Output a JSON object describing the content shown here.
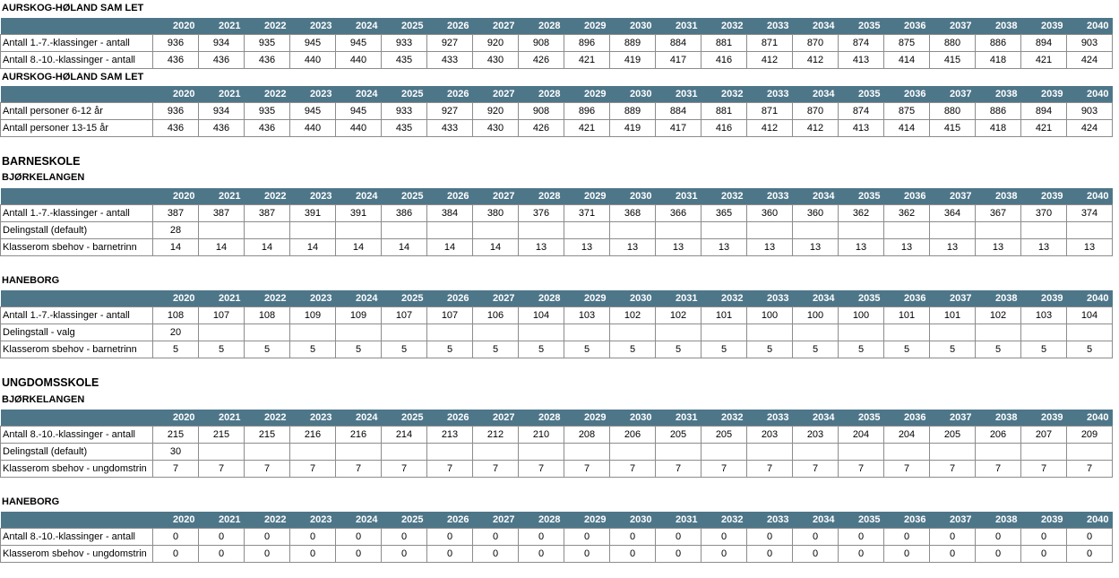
{
  "years": [
    "2020",
    "2021",
    "2022",
    "2023",
    "2024",
    "2025",
    "2026",
    "2027",
    "2028",
    "2029",
    "2030",
    "2031",
    "2032",
    "2033",
    "2034",
    "2035",
    "2036",
    "2037",
    "2038",
    "2039",
    "2040"
  ],
  "sections": [
    {
      "main": "",
      "sub": "AURSKOG-HØLAND SAM LET",
      "rows": [
        {
          "label": "Antall 1.-7.-klassinger - antall",
          "values": [
            "936",
            "934",
            "935",
            "945",
            "945",
            "933",
            "927",
            "920",
            "908",
            "896",
            "889",
            "884",
            "881",
            "871",
            "870",
            "874",
            "875",
            "880",
            "886",
            "894",
            "903"
          ]
        },
        {
          "label": "Antall 8.-10.-klassinger - antall",
          "values": [
            "436",
            "436",
            "436",
            "440",
            "440",
            "435",
            "433",
            "430",
            "426",
            "421",
            "419",
            "417",
            "416",
            "412",
            "412",
            "413",
            "414",
            "415",
            "418",
            "421",
            "424"
          ]
        }
      ]
    },
    {
      "main": "",
      "sub": "AURSKOG-HØLAND SAM LET",
      "rows": [
        {
          "label": "Antall personer 6-12 år",
          "values": [
            "936",
            "934",
            "935",
            "945",
            "945",
            "933",
            "927",
            "920",
            "908",
            "896",
            "889",
            "884",
            "881",
            "871",
            "870",
            "874",
            "875",
            "880",
            "886",
            "894",
            "903"
          ]
        },
        {
          "label": "Antall personer 13-15 år",
          "values": [
            "436",
            "436",
            "436",
            "440",
            "440",
            "435",
            "433",
            "430",
            "426",
            "421",
            "419",
            "417",
            "416",
            "412",
            "412",
            "413",
            "414",
            "415",
            "418",
            "421",
            "424"
          ]
        }
      ]
    },
    {
      "main": "BARNESKOLE",
      "sub": "BJØRKELANGEN",
      "rows": [
        {
          "label": "Antall 1.-7.-klassinger - antall",
          "values": [
            "387",
            "387",
            "387",
            "391",
            "391",
            "386",
            "384",
            "380",
            "376",
            "371",
            "368",
            "366",
            "365",
            "360",
            "360",
            "362",
            "362",
            "364",
            "367",
            "370",
            "374"
          ]
        },
        {
          "label": "Delingstall (default)",
          "values": [
            "28",
            "",
            "",
            "",
            "",
            "",
            "",
            "",
            "",
            "",
            "",
            "",
            "",
            "",
            "",
            "",
            "",
            "",
            "",
            "",
            ""
          ]
        },
        {
          "label": "Klasserom sbehov - barnetrinn",
          "values": [
            "14",
            "14",
            "14",
            "14",
            "14",
            "14",
            "14",
            "14",
            "13",
            "13",
            "13",
            "13",
            "13",
            "13",
            "13",
            "13",
            "13",
            "13",
            "13",
            "13",
            "13"
          ]
        }
      ]
    },
    {
      "main": "",
      "sub": "HANEBORG",
      "rows": [
        {
          "label": "Antall 1.-7.-klassinger - antall",
          "values": [
            "108",
            "107",
            "108",
            "109",
            "109",
            "107",
            "107",
            "106",
            "104",
            "103",
            "102",
            "102",
            "101",
            "100",
            "100",
            "100",
            "101",
            "101",
            "102",
            "103",
            "104"
          ]
        },
        {
          "label": "Delingstall - valg",
          "values": [
            "20",
            "",
            "",
            "",
            "",
            "",
            "",
            "",
            "",
            "",
            "",
            "",
            "",
            "",
            "",
            "",
            "",
            "",
            "",
            "",
            ""
          ]
        },
        {
          "label": "Klasserom sbehov - barnetrinn",
          "values": [
            "5",
            "5",
            "5",
            "5",
            "5",
            "5",
            "5",
            "5",
            "5",
            "5",
            "5",
            "5",
            "5",
            "5",
            "5",
            "5",
            "5",
            "5",
            "5",
            "5",
            "5"
          ]
        }
      ]
    },
    {
      "main": "UNGDOMSSKOLE",
      "sub": "BJØRKELANGEN",
      "rows": [
        {
          "label": "Antall 8.-10.-klassinger - antall",
          "values": [
            "215",
            "215",
            "215",
            "216",
            "216",
            "214",
            "213",
            "212",
            "210",
            "208",
            "206",
            "205",
            "205",
            "203",
            "203",
            "204",
            "204",
            "205",
            "206",
            "207",
            "209"
          ]
        },
        {
          "label": "Delingstall (default)",
          "values": [
            "30",
            "",
            "",
            "",
            "",
            "",
            "",
            "",
            "",
            "",
            "",
            "",
            "",
            "",
            "",
            "",
            "",
            "",
            "",
            "",
            ""
          ]
        },
        {
          "label": "Klasserom sbehov - ungdomstrin",
          "values": [
            "7",
            "7",
            "7",
            "7",
            "7",
            "7",
            "7",
            "7",
            "7",
            "7",
            "7",
            "7",
            "7",
            "7",
            "7",
            "7",
            "7",
            "7",
            "7",
            "7",
            "7"
          ]
        }
      ]
    },
    {
      "main": "",
      "sub": "HANEBORG",
      "rows": [
        {
          "label": "Antall 8.-10.-klassinger - antall",
          "values": [
            "0",
            "0",
            "0",
            "0",
            "0",
            "0",
            "0",
            "0",
            "0",
            "0",
            "0",
            "0",
            "0",
            "0",
            "0",
            "0",
            "0",
            "0",
            "0",
            "0",
            "0"
          ]
        },
        {
          "label": "Klasserom sbehov - ungdomstrin",
          "values": [
            "0",
            "0",
            "0",
            "0",
            "0",
            "0",
            "0",
            "0",
            "0",
            "0",
            "0",
            "0",
            "0",
            "0",
            "0",
            "0",
            "0",
            "0",
            "0",
            "0",
            "0"
          ]
        }
      ]
    }
  ]
}
